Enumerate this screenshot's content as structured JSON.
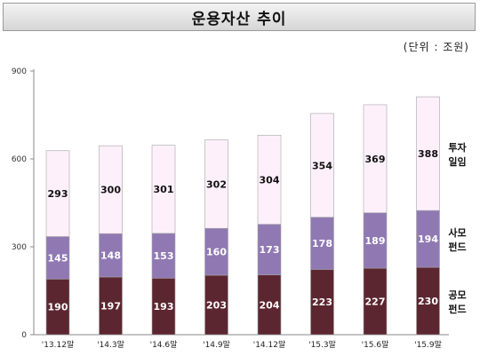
{
  "header": {
    "title": "운용자산 추이",
    "unit_note": "(단위 : 조원)"
  },
  "chart_data": {
    "type": "bar",
    "stacked": true,
    "title": "운용자산 추이",
    "unit": "(단위 : 조원)",
    "categories": [
      "'13.12말",
      "'14.3말",
      "'14.6말",
      "'14.9말",
      "'14.12말",
      "'15.3말",
      "'15.6말",
      "'15.9말"
    ],
    "series": [
      {
        "name": "공모 펀드",
        "label_lines": [
          "공모",
          "펀드"
        ],
        "color": "#5c2630",
        "text_color": "#ffffff",
        "values": [
          190,
          197,
          193,
          203,
          204,
          223,
          227,
          230
        ]
      },
      {
        "name": "사모 펀드",
        "label_lines": [
          "사모",
          "펀드"
        ],
        "color": "#9079b3",
        "text_color": "#ffffff",
        "values": [
          145,
          148,
          153,
          160,
          173,
          178,
          189,
          194
        ]
      },
      {
        "name": "투자 일임",
        "label_lines": [
          "투자",
          "일임"
        ],
        "color": "#fdf0fb",
        "text_color": "#111111",
        "values": [
          293,
          300,
          301,
          302,
          304,
          354,
          369,
          388
        ]
      }
    ],
    "yticks": [
      0,
      300,
      600,
      900
    ],
    "ylim": [
      0,
      900
    ],
    "grid": false,
    "legend_placement": "right, beside each segment of the last bar"
  }
}
